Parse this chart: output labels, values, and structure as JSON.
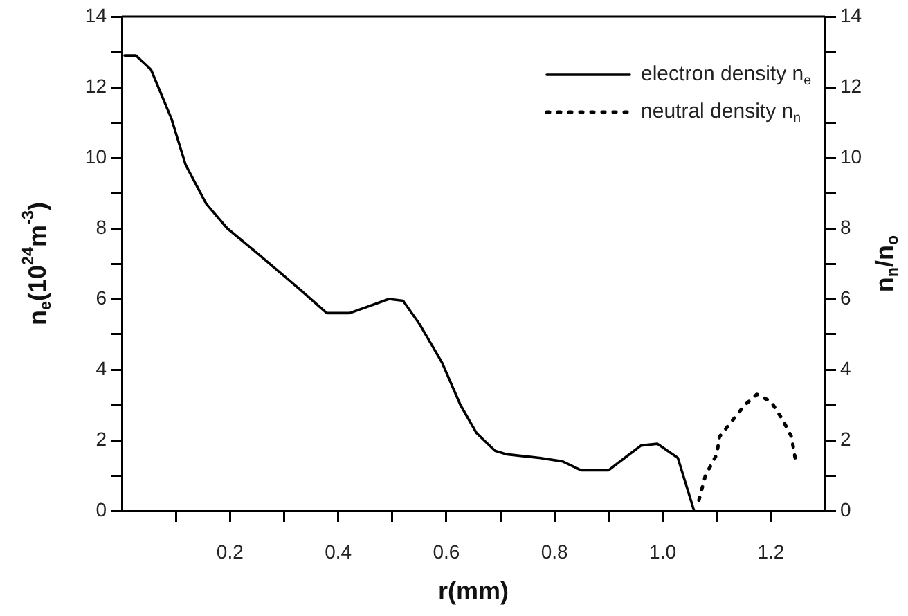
{
  "chart_data": {
    "type": "line",
    "xlabel": "r(mm)",
    "ylabel": "n$_{e}$(10$^{24}$m$^{-3}$)",
    "y2label": "n$_{n}$/n$_{o}$",
    "xlim": [
      0,
      1.3
    ],
    "xticks": [
      {
        "value": 0.1,
        "label": null
      },
      0.2,
      {
        "value": 0.3,
        "label": null
      },
      0.4,
      {
        "value": 0.5,
        "label": null
      },
      0.6,
      {
        "value": 0.7,
        "label": null
      },
      0.8,
      {
        "value": 0.9,
        "label": null
      },
      {
        "value": 1.0,
        "label": "1.0"
      },
      {
        "value": 1.1,
        "label": null
      },
      1.2
    ],
    "ylim": [
      0,
      14
    ],
    "yticks": [
      0,
      {
        "value": 1,
        "label": null
      },
      2,
      {
        "value": 3,
        "label": null
      },
      4,
      {
        "value": 5,
        "label": null
      },
      6,
      {
        "value": 7,
        "label": null
      },
      8,
      {
        "value": 9,
        "label": null
      },
      10,
      {
        "value": 11,
        "label": null
      },
      12,
      {
        "value": 13,
        "label": null
      },
      14
    ],
    "y2lim": [
      0,
      14
    ],
    "y2ticks": [
      0,
      {
        "value": 1,
        "label": null
      },
      2,
      {
        "value": 3,
        "label": null
      },
      4,
      {
        "value": 5,
        "label": null
      },
      6,
      {
        "value": 7,
        "label": null
      },
      8,
      {
        "value": 9,
        "label": null
      },
      10,
      {
        "value": 11,
        "label": null
      },
      12,
      {
        "value": 13,
        "label": null
      },
      14
    ],
    "grid": false,
    "legend": "top right",
    "marker": "none",
    "series": [
      {
        "name": "electron density n$_{e}$",
        "color": "#000000",
        "line_style": "solid",
        "x": [
          0.005,
          0.026,
          0.054,
          0.092,
          0.118,
          0.156,
          0.195,
          0.25,
          0.327,
          0.379,
          0.421,
          0.494,
          0.52,
          0.55,
          0.592,
          0.626,
          0.656,
          0.69,
          0.712,
          0.772,
          0.815,
          0.849,
          0.9,
          0.934,
          0.96,
          0.99,
          1.028,
          1.058
        ],
        "values": [
          12.9,
          12.9,
          12.5,
          11.1,
          9.8,
          8.7,
          8.0,
          7.3,
          6.3,
          5.6,
          5.6,
          6.0,
          5.95,
          5.3,
          4.2,
          3.0,
          2.2,
          1.7,
          1.6,
          1.5,
          1.4,
          1.15,
          1.15,
          1.55,
          1.85,
          1.9,
          1.5,
          0
        ]
      },
      {
        "name": "neutral density n$_{n}$",
        "color": "#000000",
        "line_style": "dotted",
        "axis": "y2",
        "x": [
          1.067,
          1.079,
          1.1,
          1.105,
          1.131,
          1.152,
          1.174,
          1.2,
          1.221,
          1.238,
          1.246
        ],
        "values": [
          0.3,
          1.0,
          1.6,
          2.1,
          2.6,
          3.0,
          3.3,
          3.1,
          2.6,
          2.1,
          1.4
        ]
      }
    ]
  }
}
